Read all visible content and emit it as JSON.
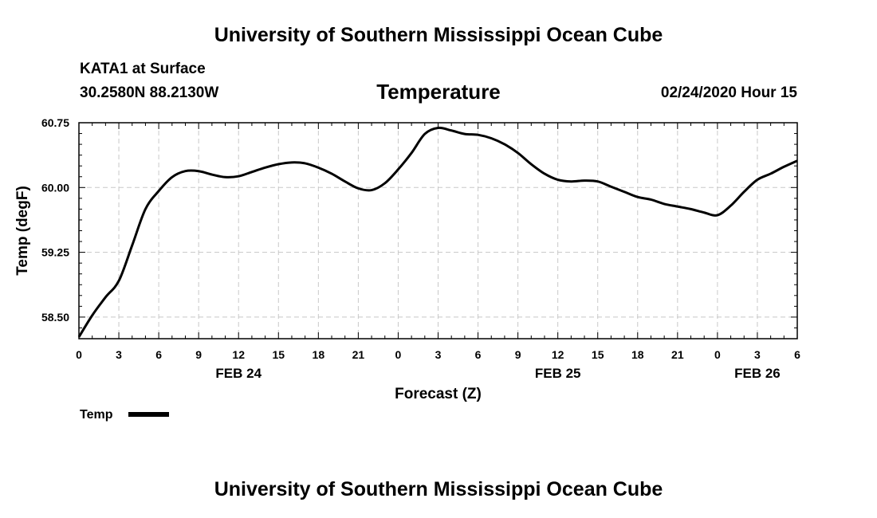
{
  "header": {
    "title": "University of Southern Mississippi Ocean Cube",
    "station": "KATA1 at Surface",
    "coords": "30.2580N 88.2130W",
    "variable": "Temperature",
    "datetime": "02/24/2020 Hour 15"
  },
  "footer": {
    "title": "University of Southern Mississippi Ocean Cube"
  },
  "chart_data": {
    "type": "line",
    "title": "Temperature",
    "xlabel": "Forecast (Z)",
    "ylabel": "Temp (degF)",
    "xlim": [
      0,
      54
    ],
    "ylim": [
      58.25,
      60.75
    ],
    "grid": true,
    "x_ticks": [
      0,
      3,
      6,
      9,
      12,
      15,
      18,
      21,
      24,
      27,
      30,
      33,
      36,
      39,
      42,
      45,
      48,
      51,
      54
    ],
    "x_tick_labels": [
      "0",
      "3",
      "6",
      "9",
      "12",
      "15",
      "18",
      "21",
      "0",
      "3",
      "6",
      "9",
      "12",
      "15",
      "18",
      "21",
      "0",
      "3",
      "6"
    ],
    "date_labels": [
      {
        "x": 12,
        "label": "FEB 24"
      },
      {
        "x": 36,
        "label": "FEB 25"
      },
      {
        "x": 51,
        "label": "FEB 26"
      }
    ],
    "y_ticks": [
      58.5,
      59.25,
      60.0,
      60.75
    ],
    "y_tick_labels": [
      "58.50",
      "59.25",
      "60.00",
      "60.75"
    ],
    "legend": {
      "label": "Temp",
      "position": "bottom-left"
    },
    "series": [
      {
        "name": "Temp",
        "color": "#000000",
        "x": [
          0,
          1,
          2,
          3,
          4,
          5,
          6,
          7,
          8,
          9,
          10,
          11,
          12,
          13,
          14,
          15,
          16,
          17,
          18,
          19,
          20,
          21,
          22,
          23,
          24,
          25,
          26,
          27,
          28,
          29,
          30,
          31,
          32,
          33,
          34,
          35,
          36,
          37,
          38,
          39,
          40,
          41,
          42,
          43,
          44,
          45,
          46,
          47,
          48,
          49,
          50,
          51,
          52,
          53,
          54
        ],
        "values": [
          58.27,
          58.52,
          58.73,
          58.92,
          59.33,
          59.75,
          59.96,
          60.12,
          60.19,
          60.19,
          60.15,
          60.12,
          60.13,
          60.18,
          60.23,
          60.27,
          60.29,
          60.28,
          60.23,
          60.16,
          60.07,
          59.99,
          59.97,
          60.05,
          60.21,
          60.4,
          60.62,
          60.69,
          60.66,
          60.62,
          60.61,
          60.57,
          60.5,
          60.4,
          60.27,
          60.16,
          60.09,
          60.07,
          60.08,
          60.07,
          60.01,
          59.95,
          59.89,
          59.86,
          59.81,
          59.78,
          59.75,
          59.71,
          59.68,
          59.79,
          59.95,
          60.09,
          60.16,
          60.24,
          60.31
        ]
      }
    ]
  }
}
